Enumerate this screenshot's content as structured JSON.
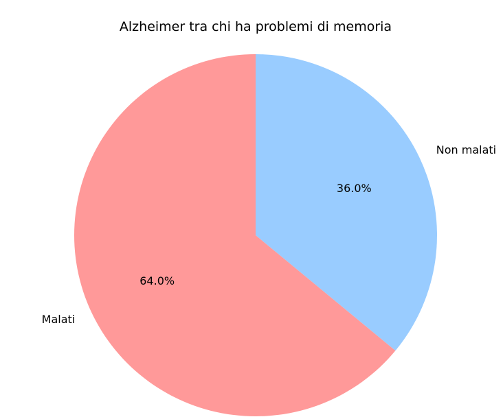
{
  "chart_data": {
    "type": "pie",
    "title": "Alzheimer tra chi ha problemi di memoria",
    "labels": [
      "Non malati",
      "Malati"
    ],
    "values": [
      36.0,
      64.0
    ],
    "percent_labels": [
      "36.0%",
      "64.0%"
    ],
    "colors": [
      "#99ccff",
      "#ff9999"
    ],
    "start_angle_deg": 90,
    "direction": "clockwise",
    "legend": "none"
  }
}
